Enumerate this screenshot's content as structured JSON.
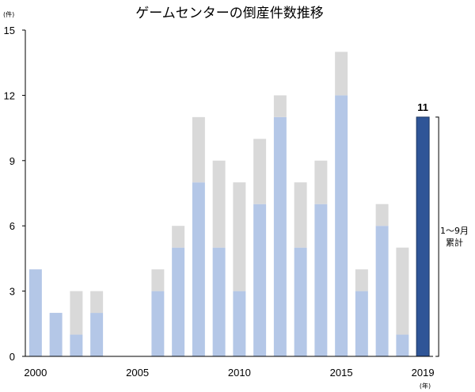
{
  "chart_data": {
    "type": "bar",
    "title": "ゲームセンターの倒産件数推移",
    "ylabel_unit": "(件)",
    "xlabel_unit": "(年)",
    "ylim": [
      0,
      15
    ],
    "yticks": [
      0,
      3,
      6,
      9,
      12,
      15
    ],
    "categories": [
      "2000",
      "2001",
      "2002",
      "2003",
      "2004",
      "2005",
      "2006",
      "2007",
      "2008",
      "2009",
      "2010",
      "2011",
      "2012",
      "2013",
      "2014",
      "2015",
      "2016",
      "2017",
      "2018",
      "2019"
    ],
    "x_tick_labels": {
      "2000": "2000",
      "2005": "2005",
      "2010": "2010",
      "2015": "2015",
      "2019": "2019"
    },
    "series": [
      {
        "values": [
          4,
          2,
          1,
          2,
          0,
          0,
          3,
          5,
          8,
          5,
          3,
          7,
          11,
          5,
          7,
          12,
          3,
          6,
          1,
          11
        ]
      },
      {
        "values": [
          0,
          0,
          2,
          1,
          0,
          0,
          1,
          1,
          3,
          4,
          5,
          3,
          1,
          3,
          2,
          2,
          1,
          1,
          4,
          0
        ]
      }
    ],
    "highlight": {
      "category": "2019",
      "label": "11",
      "note_line1": "1～9月",
      "note_line2": "累計"
    },
    "colors": {
      "series1": "#b4c7e7",
      "series2": "#d9d9d9",
      "highlight": "#2f5597",
      "highlight_border": "#1f3864",
      "axis": "#000000",
      "grid": "#d9d9d9"
    },
    "grid": false
  }
}
